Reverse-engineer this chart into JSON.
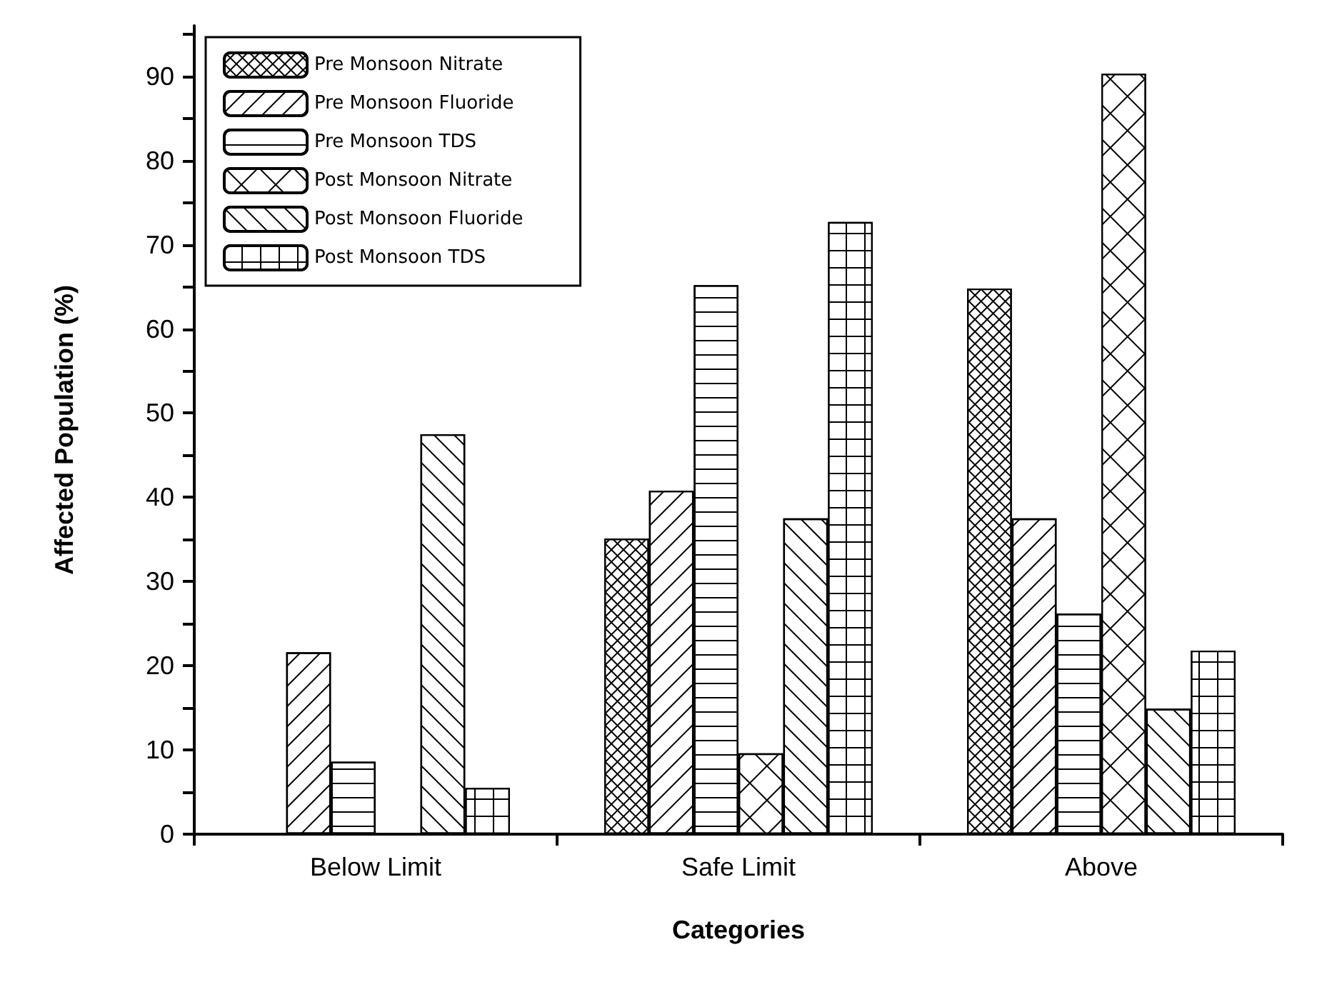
{
  "chart_data": {
    "type": "bar",
    "xlabel": "Categories",
    "ylabel": "Affected Population (%)",
    "categories": [
      "Below Limit",
      "Safe Limit",
      "Above"
    ],
    "series": [
      {
        "name": "Pre Monsoon Nitrate",
        "color": "#000000",
        "values": [
          0,
          35.1,
          64.8
        ]
      },
      {
        "name": "Pre Monsoon Fluoride",
        "color": "#000000",
        "values": [
          21.6,
          40.8,
          37.5
        ]
      },
      {
        "name": "Pre Monsoon TDS",
        "color": "#000000",
        "values": [
          8.6,
          65.2,
          26.2
        ]
      },
      {
        "name": "Post Monsoon Nitrate",
        "color": "#000000",
        "values": [
          0,
          9.6,
          90.3
        ]
      },
      {
        "name": "Post Monsoon Fluoride",
        "color": "#000000",
        "values": [
          47.5,
          37.5,
          14.9
        ]
      },
      {
        "name": "Post Monsoon TDS",
        "color": "#000000",
        "values": [
          5.5,
          72.7,
          21.8
        ]
      }
    ],
    "ylim": [
      0,
      96
    ],
    "yticks": [
      0,
      {
        "value": 5,
        "label": null
      },
      10,
      {
        "value": 15,
        "label": null
      },
      20,
      {
        "value": 25,
        "label": null
      },
      30,
      {
        "value": 35,
        "label": null
      },
      40,
      {
        "value": 45,
        "label": null
      },
      50,
      {
        "value": 55,
        "label": null
      },
      60,
      {
        "value": 65,
        "label": null
      },
      70,
      {
        "value": 75,
        "label": null
      },
      80,
      {
        "value": 85,
        "label": null
      },
      90,
      {
        "value": 95,
        "label": null
      }
    ],
    "grid": false,
    "legend": "top left"
  }
}
